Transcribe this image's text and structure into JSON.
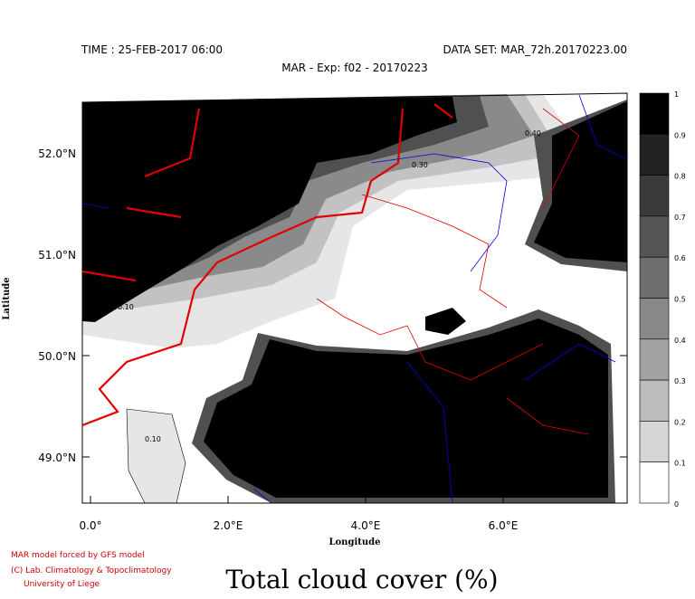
{
  "header": {
    "time": "TIME : 25-FEB-2017 06:00",
    "dataset": "DATA SET: MAR_72h.20170223.00",
    "experiment": "MAR - Exp: f02 - 20170223"
  },
  "axes": {
    "y_label": "Latitude",
    "x_label": "Longitude",
    "y_ticks": [
      "52.0°N",
      "51.0°N",
      "50.0°N",
      "49.0°N"
    ],
    "x_ticks": [
      "0.0°",
      "2.0°E",
      "4.0°E",
      "6.0°E"
    ]
  },
  "colorbar": {
    "labels": [
      "1",
      "0.9",
      "0.8",
      "0.7",
      "0.6",
      "0.5",
      "0.4",
      "0.3",
      "0.2",
      "0.1",
      "0"
    ]
  },
  "contour_labels": [
    "0.40",
    "0.30",
    "0.10",
    "0.10"
  ],
  "footer": {
    "credits": [
      "MAR model forced by GFS model",
      "(C) Lab. Climatology & Topoclimatology",
      "University of Liege"
    ],
    "title": "Total cloud cover (%)"
  }
}
